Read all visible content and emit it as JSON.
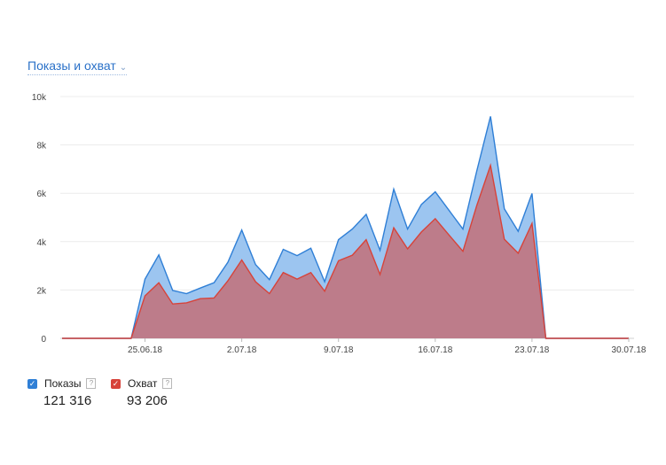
{
  "header": {
    "title": "Показы и охват",
    "chevron_icon": "chevron-down-icon"
  },
  "legend": [
    {
      "label": "Показы",
      "value": "121 316",
      "color": "#2f7fd6",
      "help": "?"
    },
    {
      "label": "Охват",
      "value": "93 206",
      "color": "#d7433a",
      "help": "?"
    }
  ],
  "chart_data": {
    "type": "area",
    "x": [
      "19.06.18",
      "20.06.18",
      "21.06.18",
      "22.06.18",
      "23.06.18",
      "24.06.18",
      "25.06.18",
      "26.06.18",
      "27.06.18",
      "28.06.18",
      "29.06.18",
      "30.06.18",
      "1.07.18",
      "2.07.18",
      "3.07.18",
      "4.07.18",
      "5.07.18",
      "6.07.18",
      "7.07.18",
      "8.07.18",
      "9.07.18",
      "10.07.18",
      "11.07.18",
      "12.07.18",
      "13.07.18",
      "14.07.18",
      "15.07.18",
      "16.07.18",
      "17.07.18",
      "18.07.18",
      "19.07.18",
      "20.07.18",
      "21.07.18",
      "22.07.18",
      "23.07.18",
      "24.07.18",
      "25.07.18",
      "26.07.18",
      "27.07.18",
      "28.07.18",
      "29.07.18",
      "30.07.18"
    ],
    "series": [
      {
        "name": "Показы",
        "color": "#2f7fd6",
        "fill": "#9cc5f0",
        "values": [
          0,
          0,
          0,
          0,
          0,
          0,
          2450,
          3450,
          1980,
          1850,
          2080,
          2300,
          3150,
          4480,
          3050,
          2430,
          3680,
          3420,
          3730,
          2340,
          4080,
          4520,
          5130,
          3640,
          6170,
          4520,
          5540,
          6060,
          5290,
          4520,
          6920,
          9180,
          5360,
          4430,
          5990,
          0,
          0,
          0,
          0,
          0,
          0,
          0
        ]
      },
      {
        "name": "Охват",
        "color": "#d7433a",
        "fill": "#bf7884",
        "values": [
          0,
          0,
          0,
          0,
          0,
          0,
          1760,
          2300,
          1420,
          1470,
          1640,
          1670,
          2380,
          3240,
          2340,
          1850,
          2720,
          2450,
          2720,
          1950,
          3210,
          3440,
          4080,
          2640,
          4570,
          3700,
          4400,
          4950,
          4270,
          3600,
          5490,
          7150,
          4100,
          3520,
          4750,
          0,
          0,
          0,
          0,
          0,
          0,
          0
        ]
      }
    ],
    "xticks": [
      "25.06.18",
      "2.07.18",
      "9.07.18",
      "16.07.18",
      "23.07.18",
      "30.07.18"
    ],
    "yticks": [
      "0",
      "2k",
      "4k",
      "6k",
      "8k",
      "10k"
    ],
    "ylim": [
      0,
      10000
    ],
    "grid": true,
    "legend_position": "bottom-left"
  }
}
